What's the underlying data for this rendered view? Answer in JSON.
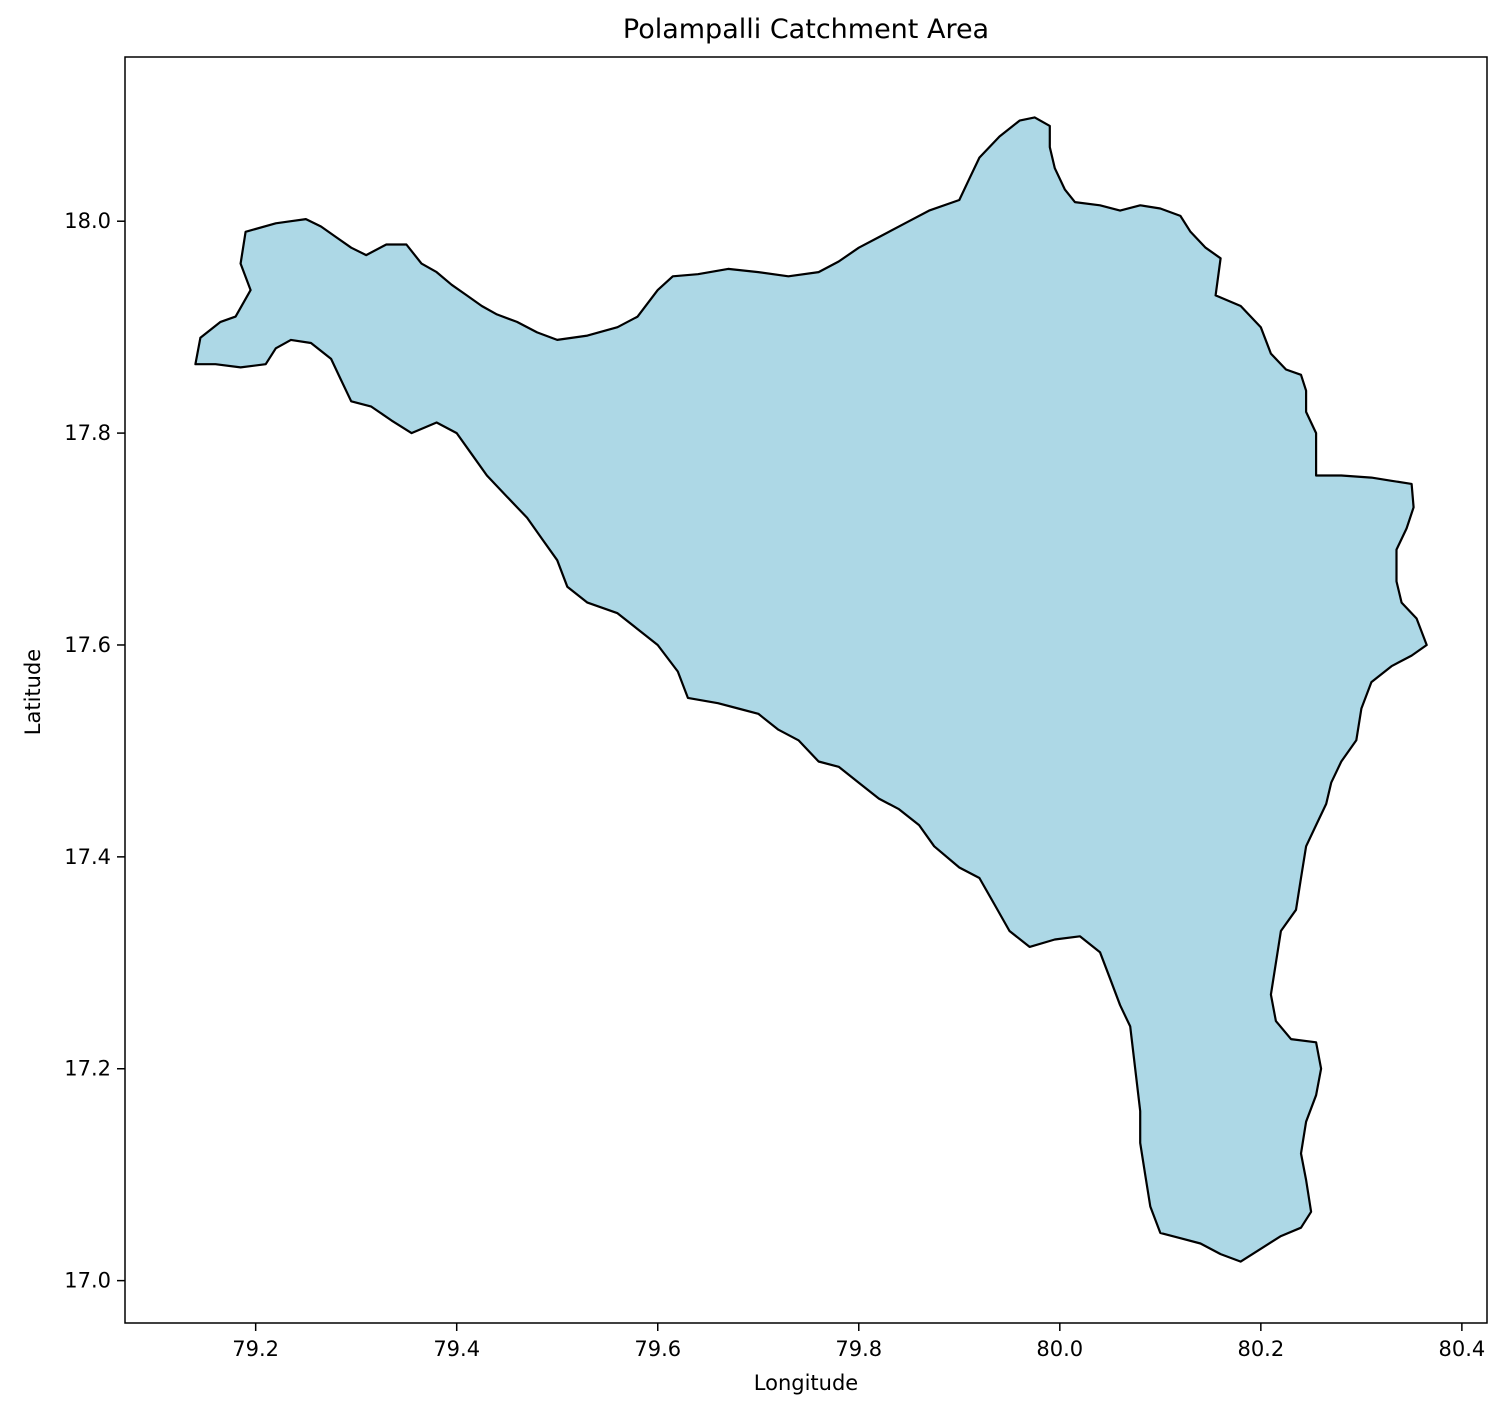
{
  "chart_data": {
    "type": "map",
    "title": "Polampalli Catchment Area",
    "xlabel": "Longitude",
    "ylabel": "Latitude",
    "xlim": [
      79.07,
      80.425
    ],
    "ylim": [
      16.96,
      18.155
    ],
    "xticks": [
      79.2,
      79.4,
      79.6,
      79.8,
      80.0,
      80.2,
      80.4
    ],
    "xtick_labels": [
      "79.2",
      "79.4",
      "79.6",
      "79.8",
      "80.0",
      "80.2",
      "80.4"
    ],
    "yticks": [
      17.0,
      17.2,
      17.4,
      17.6,
      17.8,
      18.0
    ],
    "ytick_labels": [
      "17.0",
      "17.2",
      "17.4",
      "17.6",
      "17.8",
      "18.0"
    ],
    "grid": false,
    "fill_color": "#add8e6",
    "edge_color": "#000000",
    "boundary": [
      [
        79.14,
        17.865
      ],
      [
        79.145,
        17.89
      ],
      [
        79.165,
        17.905
      ],
      [
        79.18,
        17.91
      ],
      [
        79.195,
        17.935
      ],
      [
        79.185,
        17.96
      ],
      [
        79.19,
        17.99
      ],
      [
        79.22,
        17.998
      ],
      [
        79.235,
        18.0
      ],
      [
        79.25,
        18.002
      ],
      [
        79.265,
        17.995
      ],
      [
        79.28,
        17.985
      ],
      [
        79.295,
        17.975
      ],
      [
        79.31,
        17.968
      ],
      [
        79.33,
        17.978
      ],
      [
        79.35,
        17.978
      ],
      [
        79.365,
        17.96
      ],
      [
        79.38,
        17.952
      ],
      [
        79.395,
        17.94
      ],
      [
        79.41,
        17.93
      ],
      [
        79.425,
        17.92
      ],
      [
        79.44,
        17.912
      ],
      [
        79.46,
        17.905
      ],
      [
        79.48,
        17.895
      ],
      [
        79.5,
        17.888
      ],
      [
        79.53,
        17.892
      ],
      [
        79.56,
        17.9
      ],
      [
        79.58,
        17.91
      ],
      [
        79.6,
        17.935
      ],
      [
        79.615,
        17.948
      ],
      [
        79.64,
        17.95
      ],
      [
        79.67,
        17.955
      ],
      [
        79.7,
        17.952
      ],
      [
        79.73,
        17.948
      ],
      [
        79.76,
        17.952
      ],
      [
        79.78,
        17.962
      ],
      [
        79.8,
        17.975
      ],
      [
        79.82,
        17.985
      ],
      [
        79.85,
        18.0
      ],
      [
        79.87,
        18.01
      ],
      [
        79.9,
        18.02
      ],
      [
        79.91,
        18.04
      ],
      [
        79.92,
        18.06
      ],
      [
        79.94,
        18.08
      ],
      [
        79.96,
        18.095
      ],
      [
        79.975,
        18.098
      ],
      [
        79.99,
        18.09
      ],
      [
        79.99,
        18.07
      ],
      [
        79.995,
        18.05
      ],
      [
        80.005,
        18.03
      ],
      [
        80.015,
        18.018
      ],
      [
        80.04,
        18.015
      ],
      [
        80.06,
        18.01
      ],
      [
        80.08,
        18.015
      ],
      [
        80.1,
        18.012
      ],
      [
        80.12,
        18.005
      ],
      [
        80.13,
        17.99
      ],
      [
        80.145,
        17.975
      ],
      [
        80.16,
        17.965
      ],
      [
        80.155,
        17.93
      ],
      [
        80.18,
        17.92
      ],
      [
        80.2,
        17.9
      ],
      [
        80.21,
        17.875
      ],
      [
        80.225,
        17.86
      ],
      [
        80.24,
        17.855
      ],
      [
        80.245,
        17.84
      ],
      [
        80.245,
        17.82
      ],
      [
        80.255,
        17.8
      ],
      [
        80.255,
        17.76
      ],
      [
        80.28,
        17.76
      ],
      [
        80.31,
        17.758
      ],
      [
        80.33,
        17.755
      ],
      [
        80.35,
        17.752
      ],
      [
        80.352,
        17.73
      ],
      [
        80.345,
        17.71
      ],
      [
        80.335,
        17.69
      ],
      [
        80.335,
        17.66
      ],
      [
        80.34,
        17.64
      ],
      [
        80.355,
        17.625
      ],
      [
        80.365,
        17.6
      ],
      [
        80.35,
        17.59
      ],
      [
        80.33,
        17.58
      ],
      [
        80.31,
        17.565
      ],
      [
        80.3,
        17.54
      ],
      [
        80.295,
        17.51
      ],
      [
        80.28,
        17.49
      ],
      [
        80.27,
        17.47
      ],
      [
        80.265,
        17.45
      ],
      [
        80.255,
        17.43
      ],
      [
        80.245,
        17.41
      ],
      [
        80.24,
        17.38
      ],
      [
        80.235,
        17.35
      ],
      [
        80.22,
        17.33
      ],
      [
        80.215,
        17.3
      ],
      [
        80.21,
        17.27
      ],
      [
        80.215,
        17.245
      ],
      [
        80.23,
        17.228
      ],
      [
        80.255,
        17.225
      ],
      [
        80.26,
        17.2
      ],
      [
        80.255,
        17.175
      ],
      [
        80.245,
        17.15
      ],
      [
        80.24,
        17.12
      ],
      [
        80.245,
        17.095
      ],
      [
        80.25,
        17.065
      ],
      [
        80.24,
        17.05
      ],
      [
        80.22,
        17.042
      ],
      [
        80.2,
        17.03
      ],
      [
        80.18,
        17.018
      ],
      [
        80.16,
        17.025
      ],
      [
        80.14,
        17.035
      ],
      [
        80.12,
        17.04
      ],
      [
        80.1,
        17.045
      ],
      [
        80.09,
        17.07
      ],
      [
        80.085,
        17.1
      ],
      [
        80.08,
        17.13
      ],
      [
        80.08,
        17.16
      ],
      [
        80.075,
        17.2
      ],
      [
        80.07,
        17.24
      ],
      [
        80.06,
        17.26
      ],
      [
        80.05,
        17.285
      ],
      [
        80.04,
        17.31
      ],
      [
        80.02,
        17.325
      ],
      [
        79.995,
        17.322
      ],
      [
        79.97,
        17.315
      ],
      [
        79.95,
        17.33
      ],
      [
        79.935,
        17.355
      ],
      [
        79.92,
        17.38
      ],
      [
        79.9,
        17.39
      ],
      [
        79.875,
        17.41
      ],
      [
        79.86,
        17.43
      ],
      [
        79.84,
        17.445
      ],
      [
        79.82,
        17.455
      ],
      [
        79.8,
        17.47
      ],
      [
        79.78,
        17.485
      ],
      [
        79.76,
        17.49
      ],
      [
        79.74,
        17.51
      ],
      [
        79.72,
        17.52
      ],
      [
        79.7,
        17.535
      ],
      [
        79.68,
        17.54
      ],
      [
        79.66,
        17.545
      ],
      [
        79.63,
        17.55
      ],
      [
        79.62,
        17.575
      ],
      [
        79.6,
        17.6
      ],
      [
        79.58,
        17.615
      ],
      [
        79.56,
        17.63
      ],
      [
        79.53,
        17.64
      ],
      [
        79.51,
        17.655
      ],
      [
        79.5,
        17.68
      ],
      [
        79.485,
        17.7
      ],
      [
        79.47,
        17.72
      ],
      [
        79.45,
        17.74
      ],
      [
        79.43,
        17.76
      ],
      [
        79.415,
        17.78
      ],
      [
        79.4,
        17.8
      ],
      [
        79.38,
        17.81
      ],
      [
        79.355,
        17.8
      ],
      [
        79.335,
        17.812
      ],
      [
        79.315,
        17.825
      ],
      [
        79.295,
        17.83
      ],
      [
        79.285,
        17.85
      ],
      [
        79.275,
        17.87
      ],
      [
        79.255,
        17.885
      ],
      [
        79.235,
        17.888
      ],
      [
        79.22,
        17.88
      ],
      [
        79.21,
        17.865
      ],
      [
        79.185,
        17.862
      ],
      [
        79.16,
        17.865
      ],
      [
        79.14,
        17.865
      ]
    ]
  }
}
